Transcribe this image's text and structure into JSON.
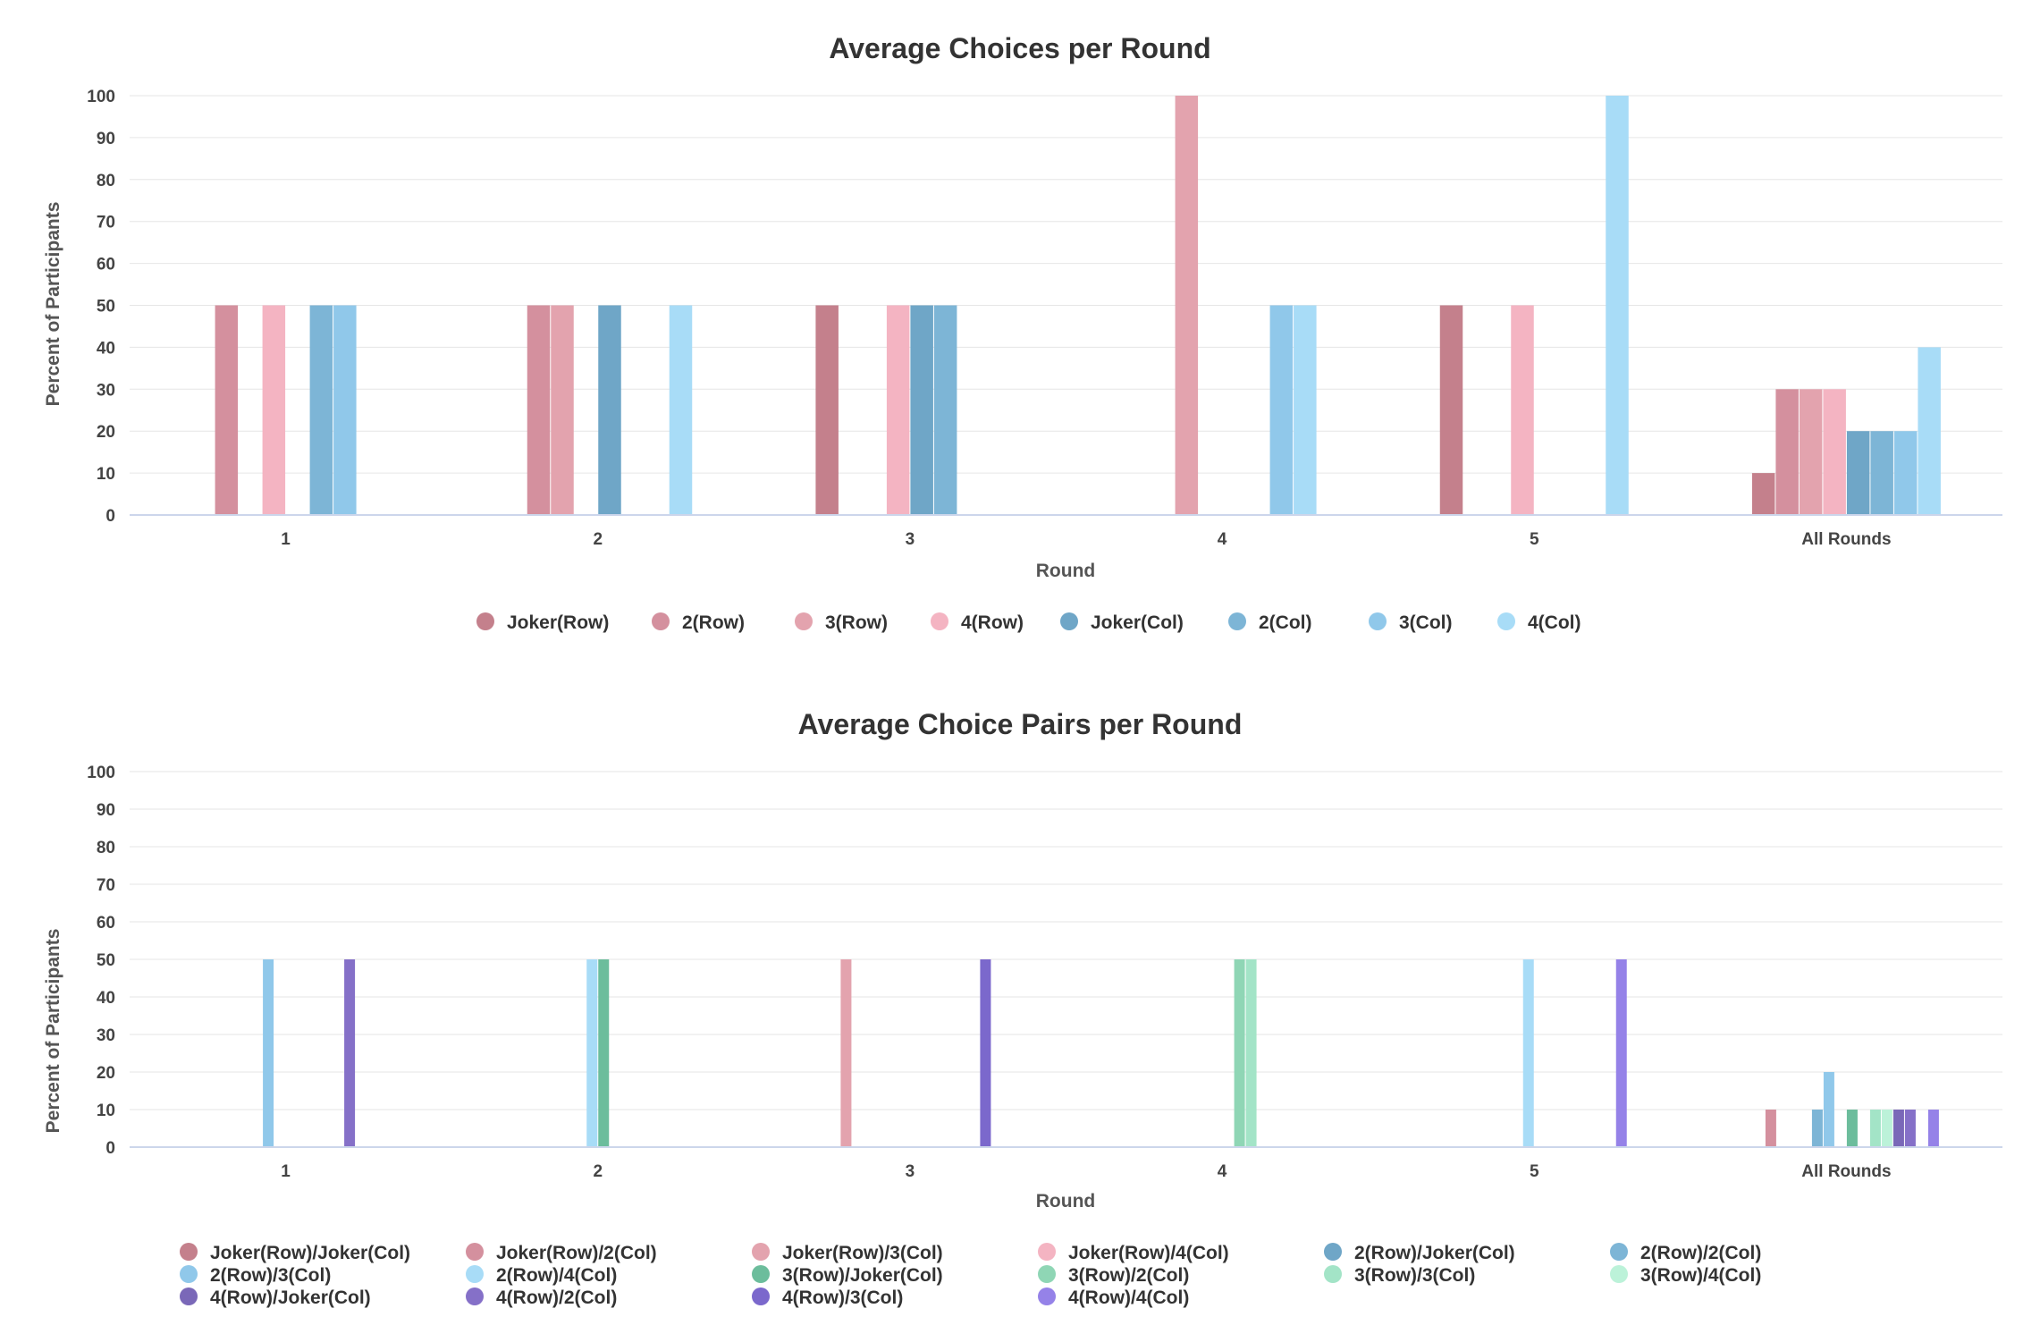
{
  "chart_data": [
    {
      "type": "bar",
      "title": "Average Choices per Round",
      "xlabel": "Round",
      "ylabel": "Percent of Participants",
      "ylim": [
        0,
        100
      ],
      "yticks": [
        0,
        10,
        20,
        30,
        40,
        50,
        60,
        70,
        80,
        90,
        100
      ],
      "grid": true,
      "legend_position": "bottom",
      "categories": [
        "1",
        "2",
        "3",
        "4",
        "5",
        "All Rounds"
      ],
      "series": [
        {
          "name": "Joker(Row)",
          "color": "#c4808c",
          "values": [
            0,
            0,
            50,
            0,
            50,
            10
          ]
        },
        {
          "name": "2(Row)",
          "color": "#d4909e",
          "values": [
            50,
            50,
            0,
            0,
            0,
            30
          ]
        },
        {
          "name": "3(Row)",
          "color": "#e3a3ae",
          "values": [
            0,
            50,
            0,
            100,
            0,
            30
          ]
        },
        {
          "name": "4(Row)",
          "color": "#f4b4c2",
          "values": [
            50,
            0,
            50,
            0,
            50,
            30
          ]
        },
        {
          "name": "Joker(Col)",
          "color": "#6fa6c7",
          "values": [
            0,
            50,
            50,
            0,
            0,
            20
          ]
        },
        {
          "name": "2(Col)",
          "color": "#7db5d6",
          "values": [
            50,
            0,
            50,
            0,
            0,
            20
          ]
        },
        {
          "name": "3(Col)",
          "color": "#90c8ea",
          "values": [
            50,
            0,
            0,
            50,
            0,
            20
          ]
        },
        {
          "name": "4(Col)",
          "color": "#a8dcf7",
          "values": [
            0,
            50,
            0,
            50,
            100,
            40
          ]
        }
      ]
    },
    {
      "type": "bar",
      "title": "Average Choice Pairs per Round",
      "xlabel": "Round",
      "ylabel": "Percent of Participants",
      "ylim": [
        0,
        100
      ],
      "yticks": [
        0,
        10,
        20,
        30,
        40,
        50,
        60,
        70,
        80,
        90,
        100
      ],
      "grid": true,
      "legend_position": "bottom",
      "categories": [
        "1",
        "2",
        "3",
        "4",
        "5",
        "All Rounds"
      ],
      "series": [
        {
          "name": "Joker(Row)/Joker(Col)",
          "color": "#c4808c",
          "values": [
            0,
            0,
            0,
            0,
            0,
            0
          ]
        },
        {
          "name": "Joker(Row)/2(Col)",
          "color": "#d4909e",
          "values": [
            0,
            0,
            0,
            0,
            0,
            10
          ]
        },
        {
          "name": "Joker(Row)/3(Col)",
          "color": "#e3a3ae",
          "values": [
            0,
            0,
            50,
            0,
            0,
            0
          ]
        },
        {
          "name": "Joker(Row)/4(Col)",
          "color": "#f4b4c2",
          "values": [
            0,
            0,
            0,
            0,
            0,
            0
          ]
        },
        {
          "name": "2(Row)/Joker(Col)",
          "color": "#6fa6c7",
          "values": [
            0,
            0,
            0,
            0,
            0,
            0
          ]
        },
        {
          "name": "2(Row)/2(Col)",
          "color": "#7db5d6",
          "values": [
            0,
            0,
            0,
            0,
            0,
            10
          ]
        },
        {
          "name": "2(Row)/3(Col)",
          "color": "#90c8ea",
          "values": [
            50,
            0,
            0,
            0,
            0,
            20
          ]
        },
        {
          "name": "2(Row)/4(Col)",
          "color": "#a8dcf7",
          "values": [
            0,
            50,
            0,
            0,
            50,
            0
          ]
        },
        {
          "name": "3(Row)/Joker(Col)",
          "color": "#6cbd9c",
          "values": [
            0,
            50,
            0,
            0,
            0,
            10
          ]
        },
        {
          "name": "3(Row)/2(Col)",
          "color": "#8fd6b5",
          "values": [
            0,
            0,
            0,
            50,
            0,
            0
          ]
        },
        {
          "name": "3(Row)/3(Col)",
          "color": "#a3e4c7",
          "values": [
            0,
            0,
            0,
            50,
            0,
            10
          ]
        },
        {
          "name": "3(Row)/4(Col)",
          "color": "#bcf2d9",
          "values": [
            0,
            0,
            0,
            0,
            0,
            10
          ]
        },
        {
          "name": "4(Row)/Joker(Col)",
          "color": "#7a68b8",
          "values": [
            0,
            0,
            0,
            0,
            0,
            10
          ]
        },
        {
          "name": "4(Row)/2(Col)",
          "color": "#8570c8",
          "values": [
            50,
            0,
            0,
            0,
            0,
            10
          ]
        },
        {
          "name": "4(Row)/3(Col)",
          "color": "#7b68cc",
          "values": [
            0,
            0,
            50,
            0,
            0,
            0
          ]
        },
        {
          "name": "4(Row)/4(Col)",
          "color": "#9582e8",
          "values": [
            0,
            0,
            0,
            0,
            50,
            10
          ]
        }
      ]
    }
  ]
}
